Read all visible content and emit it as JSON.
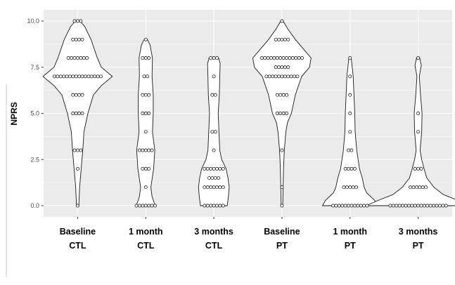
{
  "chart_data": {
    "type": "violin",
    "ylabel": "NPRS",
    "xlabel": "",
    "ylim": [
      -0.6,
      10.6
    ],
    "yticks": [
      0.0,
      2.5,
      5.0,
      7.5,
      10.0
    ],
    "ytick_labels": [
      "0.0",
      "2.5",
      "5.0",
      "7.5",
      "10.0"
    ],
    "grid": true,
    "panel_background": "#ebebeb",
    "grid_color": "#ffffff",
    "violin_fill": "#ffffff",
    "outline_color": "#1a1a1a",
    "categories": [
      {
        "line1": "Baseline",
        "line2": "CTL"
      },
      {
        "line1": "1 month",
        "line2": "CTL"
      },
      {
        "line1": "3 months",
        "line2": "CTL"
      },
      {
        "line1": "Baseline",
        "line2": "PT"
      },
      {
        "line1": "1 month",
        "line2": "PT"
      },
      {
        "line1": "3 months",
        "line2": "PT"
      }
    ],
    "series": [
      {
        "counts": {
          "0": 1,
          "2": 1,
          "3": 3,
          "5": 4,
          "6": 4,
          "7": 16,
          "8": 7,
          "9": 4,
          "10": 3
        },
        "density": [
          [
            0,
            0.3
          ],
          [
            1,
            0.5
          ],
          [
            2,
            0.9
          ],
          [
            3,
            1.3
          ],
          [
            4,
            1.6
          ],
          [
            5,
            2.6
          ],
          [
            6,
            4
          ],
          [
            6.5,
            6
          ],
          [
            7,
            8.8
          ],
          [
            7.5,
            6
          ],
          [
            8,
            5
          ],
          [
            9,
            3.4
          ],
          [
            9.7,
            1.8
          ],
          [
            10,
            0.6
          ]
        ]
      },
      {
        "counts": {
          "0": 7,
          "1": 1,
          "2": 3,
          "3": 5,
          "4": 1,
          "5": 3,
          "6": 3,
          "7": 2,
          "8": 3,
          "9": 1
        },
        "density": [
          [
            0,
            2.4
          ],
          [
            0.5,
            1.6
          ],
          [
            1,
            1.3
          ],
          [
            2,
            2
          ],
          [
            3,
            2.3
          ],
          [
            4,
            1.7
          ],
          [
            5,
            1.9
          ],
          [
            6,
            1.9
          ],
          [
            7,
            1.6
          ],
          [
            8,
            1.7
          ],
          [
            8.7,
            1.1
          ],
          [
            9,
            0.4
          ]
        ]
      },
      {
        "counts": {
          "0": 7,
          "1": 7,
          "1.5": 4,
          "2": 7,
          "3": 1,
          "4": 2,
          "6": 2,
          "7": 1,
          "8": 3
        },
        "density": [
          [
            0,
            3.4
          ],
          [
            0.5,
            3.7
          ],
          [
            1,
            3.9
          ],
          [
            1.5,
            3.6
          ],
          [
            2,
            3.1
          ],
          [
            2.5,
            2
          ],
          [
            3,
            1.5
          ],
          [
            4,
            1.3
          ],
          [
            5,
            1.1
          ],
          [
            6,
            1.4
          ],
          [
            7,
            1.5
          ],
          [
            7.7,
            1.6
          ],
          [
            8,
            1.2
          ]
        ]
      },
      {
        "counts": {
          "0": 1,
          "1": 1,
          "3": 1,
          "5": 4,
          "6": 4,
          "7": 11,
          "7.5": 5,
          "8": 14,
          "9": 5,
          "10": 1
        },
        "density": [
          [
            0,
            0.2
          ],
          [
            1,
            0.3
          ],
          [
            2,
            0.4
          ],
          [
            3,
            0.6
          ],
          [
            4,
            1
          ],
          [
            4.5,
            1.4
          ],
          [
            5,
            2.4
          ],
          [
            6,
            3.4
          ],
          [
            7,
            5
          ],
          [
            7.5,
            7
          ],
          [
            8,
            7.4
          ],
          [
            8.5,
            5.4
          ],
          [
            9,
            3.4
          ],
          [
            9.6,
            1.4
          ],
          [
            10,
            0.3
          ]
        ]
      },
      {
        "counts": {
          "0": 12,
          "1": 5,
          "2": 4,
          "3": 2,
          "4": 1,
          "5": 1,
          "6": 1,
          "7": 1,
          "8": 1
        },
        "density": [
          [
            0,
            7
          ],
          [
            0.3,
            6.2
          ],
          [
            0.7,
            4.2
          ],
          [
            1,
            3.6
          ],
          [
            1.5,
            3.1
          ],
          [
            2,
            2.4
          ],
          [
            3,
            1.7
          ],
          [
            4,
            1.3
          ],
          [
            5,
            1.2
          ],
          [
            6,
            1
          ],
          [
            7,
            0.8
          ],
          [
            8,
            0.3
          ]
        ]
      },
      {
        "counts": {
          "0": 19,
          "1": 6,
          "2": 3,
          "4": 1,
          "5": 1,
          "8": 1
        },
        "density": [
          [
            0,
            13.2
          ],
          [
            0.3,
            10
          ],
          [
            0.6,
            6.4
          ],
          [
            1,
            4
          ],
          [
            1.5,
            2.2
          ],
          [
            2,
            1.5
          ],
          [
            2.5,
            0.9
          ],
          [
            3,
            0.5
          ],
          [
            4,
            0.9
          ],
          [
            5,
            1
          ],
          [
            6,
            0.6
          ],
          [
            7,
            0.3
          ],
          [
            7.6,
            0.8
          ],
          [
            8,
            0.4
          ]
        ]
      }
    ]
  }
}
